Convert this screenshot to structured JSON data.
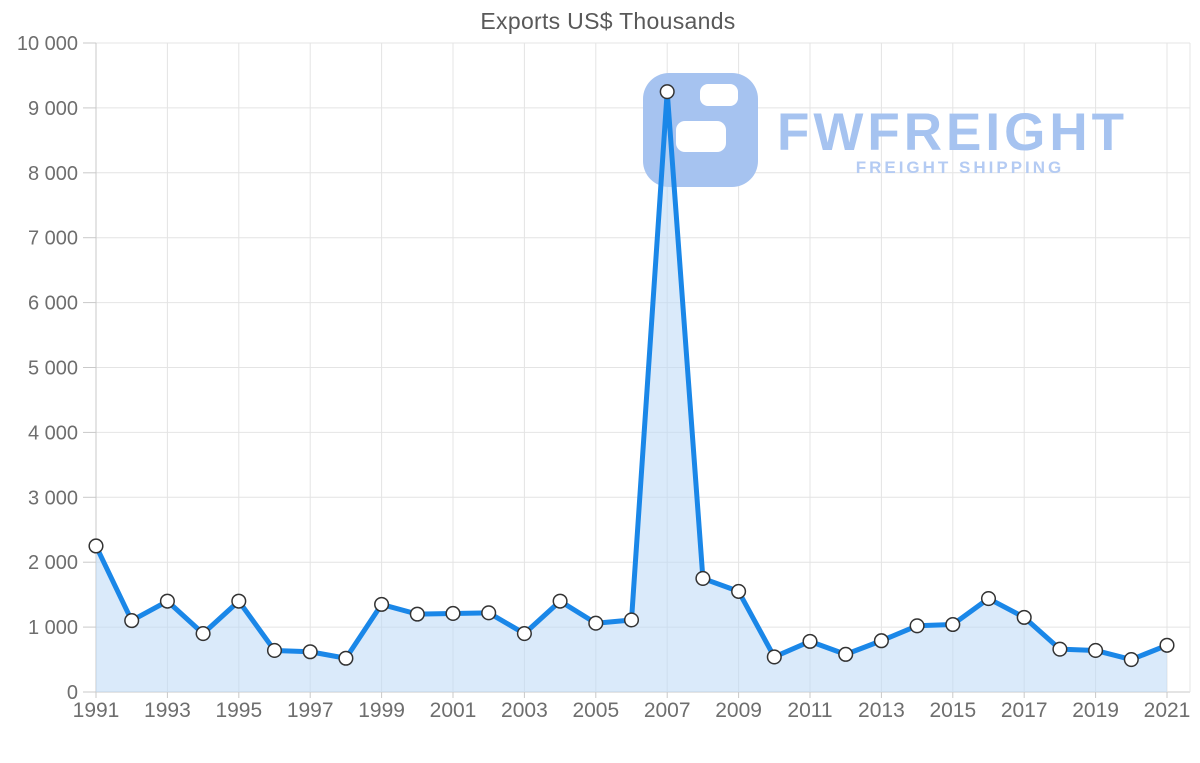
{
  "title": "Exports US$ Thousands",
  "watermark": {
    "brand": "FWFREIGHT",
    "tagline": "FREIGHT SHIPPING"
  },
  "chart_data": {
    "type": "area",
    "title": "Exports US$ Thousands",
    "xlabel": "",
    "ylabel": "",
    "x": [
      1991,
      1992,
      1993,
      1994,
      1995,
      1996,
      1997,
      1998,
      1999,
      2000,
      2001,
      2002,
      2003,
      2004,
      2005,
      2006,
      2007,
      2008,
      2009,
      2010,
      2011,
      2012,
      2013,
      2014,
      2015,
      2016,
      2017,
      2018,
      2019,
      2020,
      2021
    ],
    "values": [
      2250,
      1100,
      1400,
      900,
      1400,
      640,
      620,
      520,
      1350,
      1200,
      1210,
      1220,
      900,
      1400,
      1060,
      1110,
      9250,
      1750,
      1550,
      540,
      780,
      580,
      790,
      1020,
      1040,
      1440,
      1150,
      660,
      640,
      500,
      720
    ],
    "ylim": [
      0,
      10000
    ],
    "ytick_step": 1000,
    "ytick_labels": [
      "0",
      "1 000",
      "2 000",
      "3 000",
      "4 000",
      "5 000",
      "6 000",
      "7 000",
      "8 000",
      "9 000",
      "10 000"
    ],
    "xtick_labels": [
      "1991",
      "1993",
      "1995",
      "1997",
      "1999",
      "2001",
      "2003",
      "2005",
      "2007",
      "2009",
      "2011",
      "2013",
      "2015",
      "2017",
      "2019",
      "2021"
    ],
    "grid": true,
    "legend": "none",
    "colors": {
      "line": "#1a87e8",
      "area": "#bcd9f5",
      "area_opacity": "0.55",
      "marker_fill": "#ffffff",
      "marker_stroke": "#333333",
      "grid": "#e4e4e4",
      "axis": "#c9c9c9",
      "tick_text": "#6e6e6e",
      "title_text": "#595959",
      "watermark": "#a6c3f0",
      "watermark_tagline": "#b4cbf3"
    }
  }
}
